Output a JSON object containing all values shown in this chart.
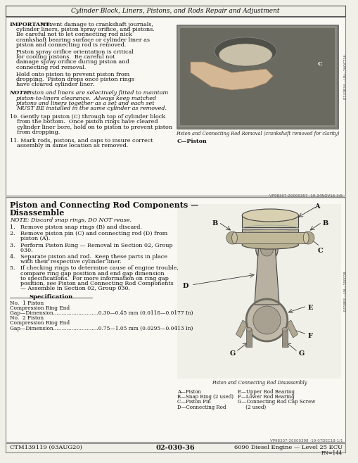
{
  "page_title": "Cylinder Block, Liners, Pistons, and Rods Repair and Adjustment",
  "bg_color": "#f0efe8",
  "top_section": {
    "img_caption": "Piston and Connecting Rod Removal (crankshaft removed for clarity)",
    "c_label": "C—Piston",
    "vp_code_top": "VP98307-20000357 -19-24NOV16-3/5"
  },
  "bottom_section": {
    "img_caption2": "Piston and Connecting Rod Disassembly",
    "vp_code_bottom": "VP98307-20000398 -19-07DEC18-1/1"
  },
  "footer": {
    "left": "CTM139119 (03AUG20)",
    "center": "02-030-36",
    "right": "6090 Diesel Engine — Level 25 ECU",
    "pn": "PN=144"
  }
}
